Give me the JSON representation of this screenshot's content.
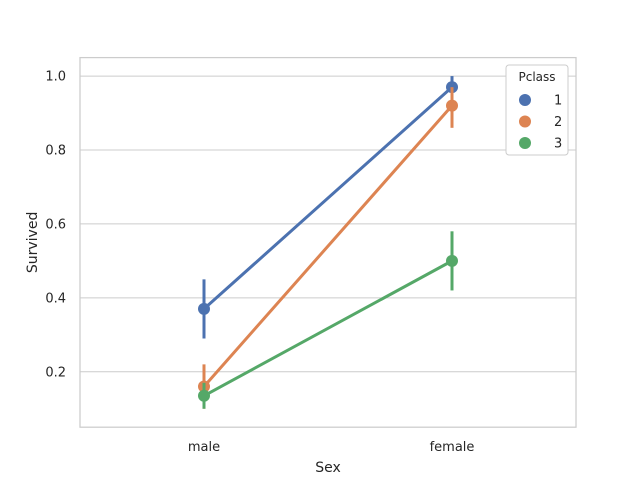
{
  "chart_data": {
    "type": "line",
    "xlabel": "Sex",
    "ylabel": "Survived",
    "categories": [
      "male",
      "female"
    ],
    "ylim": [
      0.05,
      1.05
    ],
    "yticks": [
      "0.2",
      "0.4",
      "0.6",
      "0.8",
      "1.0"
    ],
    "grid": true,
    "legend": {
      "title": "Pclass",
      "position": "top-right"
    },
    "series": [
      {
        "name": "1",
        "color": "#4c72b0",
        "values": [
          0.37,
          0.97
        ],
        "ci_low": [
          0.29,
          0.93
        ],
        "ci_high": [
          0.45,
          1.0
        ]
      },
      {
        "name": "2",
        "color": "#dd8452",
        "values": [
          0.16,
          0.92
        ],
        "ci_low": [
          0.1,
          0.86
        ],
        "ci_high": [
          0.22,
          0.97
        ]
      },
      {
        "name": "3",
        "color": "#55a868",
        "values": [
          0.135,
          0.5
        ],
        "ci_low": [
          0.1,
          0.42
        ],
        "ci_high": [
          0.17,
          0.58
        ]
      }
    ]
  }
}
